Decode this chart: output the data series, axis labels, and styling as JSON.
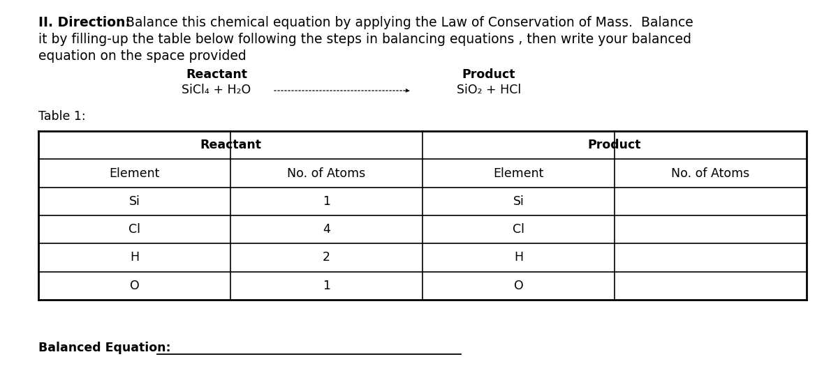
{
  "title_bold": "II. Direction:",
  "title_rest_line1": "  Balance this chemical equation by applying the Law of Conservation of Mass.  Balance",
  "title_line2": "it by filling-up the table below following the steps in balancing equations , then write your balanced",
  "title_line3": "equation on the space provided",
  "reactant_label": "Reactant",
  "product_label": "Product",
  "reactant_formula": "SiCl₄ + H₂O",
  "product_formula": "SiO₂ + HCl",
  "table_label": "Table 1:",
  "col_headers": [
    "Element",
    "No. of Atoms",
    "Element",
    "No. of Atoms"
  ],
  "elements": [
    "Si",
    "Cl",
    "H",
    "O"
  ],
  "reactant_atoms": [
    "1",
    "4",
    "2",
    "1"
  ],
  "product_atoms": [
    "",
    "",
    "",
    ""
  ],
  "balanced_eq_label": "Balanced Equation:",
  "bg_color": "#ffffff",
  "text_color": "#000000",
  "font_size_title": 13.5,
  "font_size_table": 12.5,
  "fig_width": 12.0,
  "fig_height": 5.35,
  "dpi": 100
}
